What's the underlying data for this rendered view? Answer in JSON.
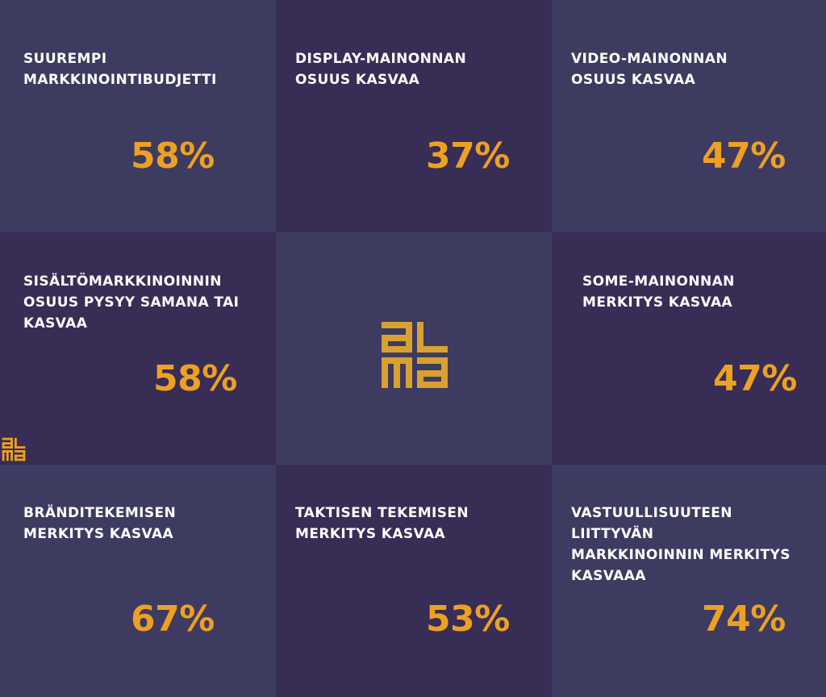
{
  "brand": {
    "name": "alma",
    "accent_color": "#eda023",
    "text_color": "#ffffff",
    "tile_light": "#3e3b61",
    "tile_dark": "#372d55"
  },
  "tiles": [
    {
      "label": "SUUREMPI\nMARKKINOINTIBUDJETTI",
      "value": "58%"
    },
    {
      "label": "DISPLAY-MAINONNAN\nOSUUS KASVAA",
      "value": "37%"
    },
    {
      "label": "VIDEO-MAINONNAN\nOSUUS KASVAA",
      "value": "47%"
    },
    {
      "label": "SISÄLTÖMARKKINOINNIN\nOSUUS PYSYY SAMANA TAI\nKASVAA",
      "value": "58%"
    },
    {
      "label": "SOME-MAINONNAN\nMERKITYS KASVAA",
      "value": "47%"
    },
    {
      "label": "BRÄNDITEKEMISEN\nMERKITYS KASVAA",
      "value": "67%"
    },
    {
      "label": "TAKTISEN TEKEMISEN\nMERKITYS KASVAA",
      "value": "53%"
    },
    {
      "label": "VASTUULLISUUTEEN\nLIITTYVÄN\nMARKKINOINNIN MERKITYS\nKASVAAA",
      "value": "74%"
    }
  ]
}
